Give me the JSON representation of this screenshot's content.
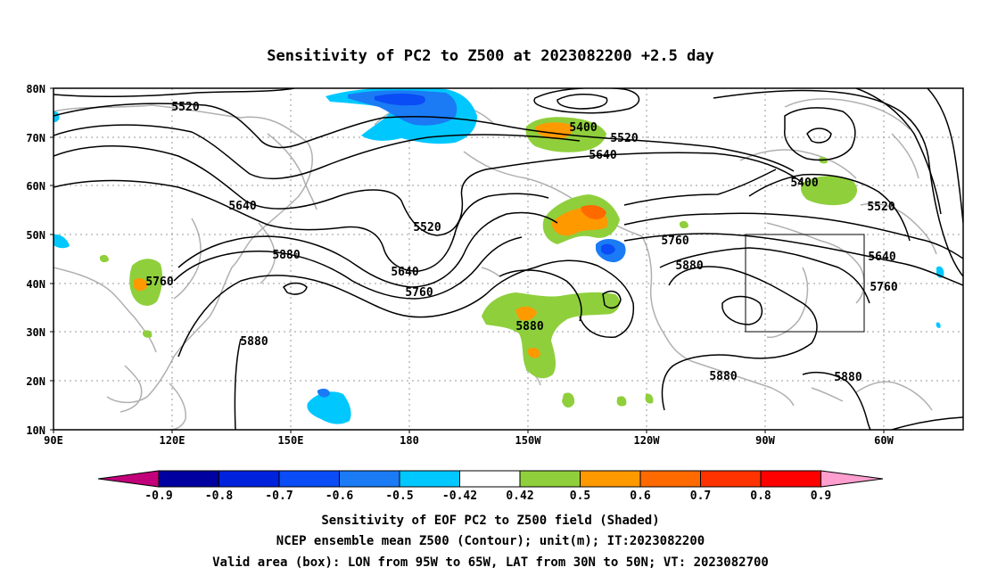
{
  "title": "Sensitivity of PC2 to Z500 at 2023082200 +2.5 day",
  "map": {
    "lat_labels": [
      "80N",
      "70N",
      "60N",
      "50N",
      "40N",
      "30N",
      "20N",
      "10N"
    ],
    "lon_labels": [
      "90E",
      "120E",
      "150E",
      "180",
      "150W",
      "120W",
      "90W",
      "60W"
    ],
    "contour_labels": [
      "5520",
      "5400",
      "5520",
      "5640",
      "5400",
      "5520",
      "5640",
      "5520",
      "5760",
      "5640",
      "5880",
      "5640",
      "5760",
      "5760",
      "5880",
      "5880",
      "5760",
      "5880",
      "5880",
      "5880"
    ]
  },
  "colorbar": {
    "labels": [
      "-0.9",
      "-0.8",
      "-0.7",
      "-0.6",
      "-0.5",
      "-0.42",
      "0.42",
      "0.5",
      "0.6",
      "0.7",
      "0.8",
      "0.9"
    ],
    "colors": [
      "#0000a0",
      "#0022dd",
      "#0a4cf5",
      "#1a7bf5",
      "#00c8ff",
      "#ffffff",
      "#8fcf3c",
      "#ff9900",
      "#ff6a00",
      "#ff3300",
      "#ff0000"
    ],
    "under_color": "#c2007a",
    "over_color": "#ff9fcf"
  },
  "captions": {
    "line1": "Sensitivity of EOF PC2 to Z500 field (Shaded)",
    "line2": "NCEP ensemble mean Z500 (Contour); unit(m); IT:2023082200",
    "line3": "Valid area (box): LON from 95W to 65W, LAT from 30N to 50N; VT: 2023082700"
  }
}
